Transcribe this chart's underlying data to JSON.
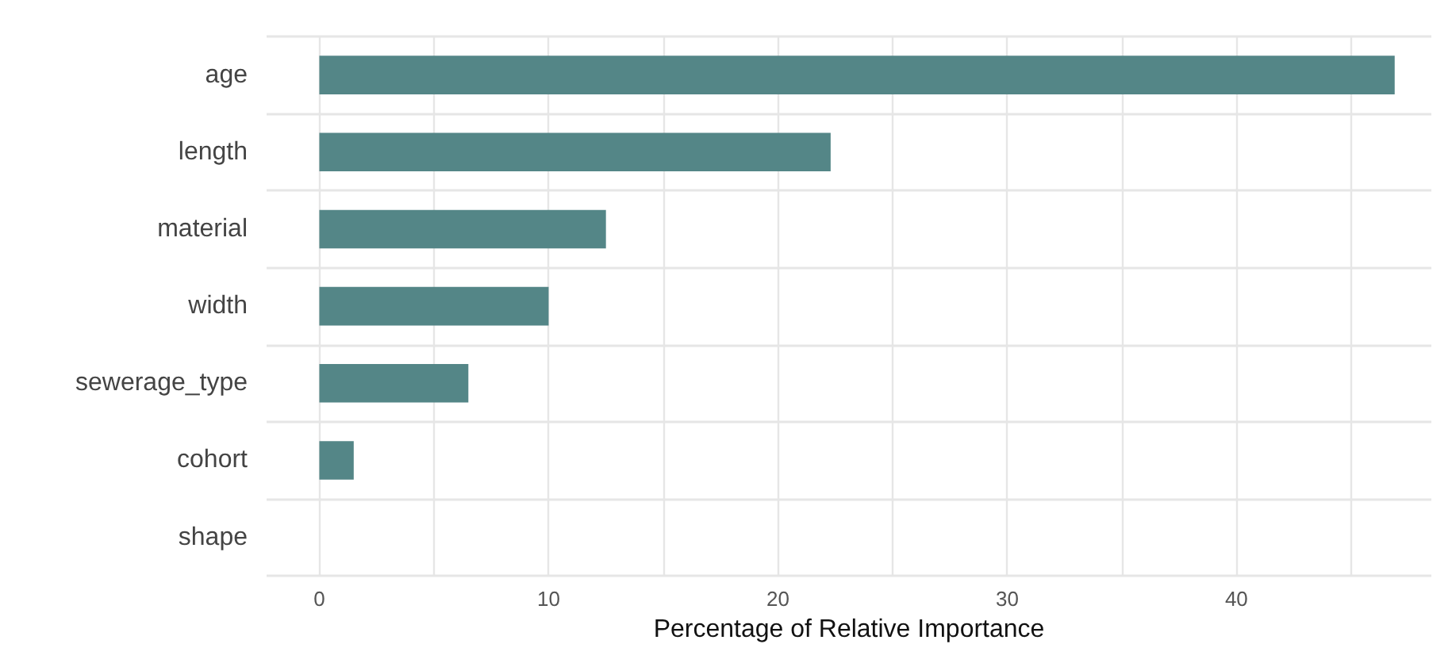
{
  "chart_data": {
    "type": "bar",
    "orientation": "horizontal",
    "xlabel": "Percentage of Relative Importance",
    "categories": [
      "age",
      "length",
      "material",
      "width",
      "sewerage_type",
      "cohort",
      "shape"
    ],
    "values": [
      46.9,
      22.3,
      12.5,
      10,
      6.5,
      1.5,
      0
    ],
    "color": "#548687",
    "xlim": [
      -2.3,
      48.5
    ],
    "xticks": [
      0,
      {
        "value": 5,
        "label": null
      },
      10,
      {
        "value": 15,
        "label": null
      },
      20,
      {
        "value": 25,
        "label": null
      },
      30,
      {
        "value": 35,
        "label": null
      },
      40,
      {
        "value": 45,
        "label": null
      }
    ],
    "grid": true
  }
}
